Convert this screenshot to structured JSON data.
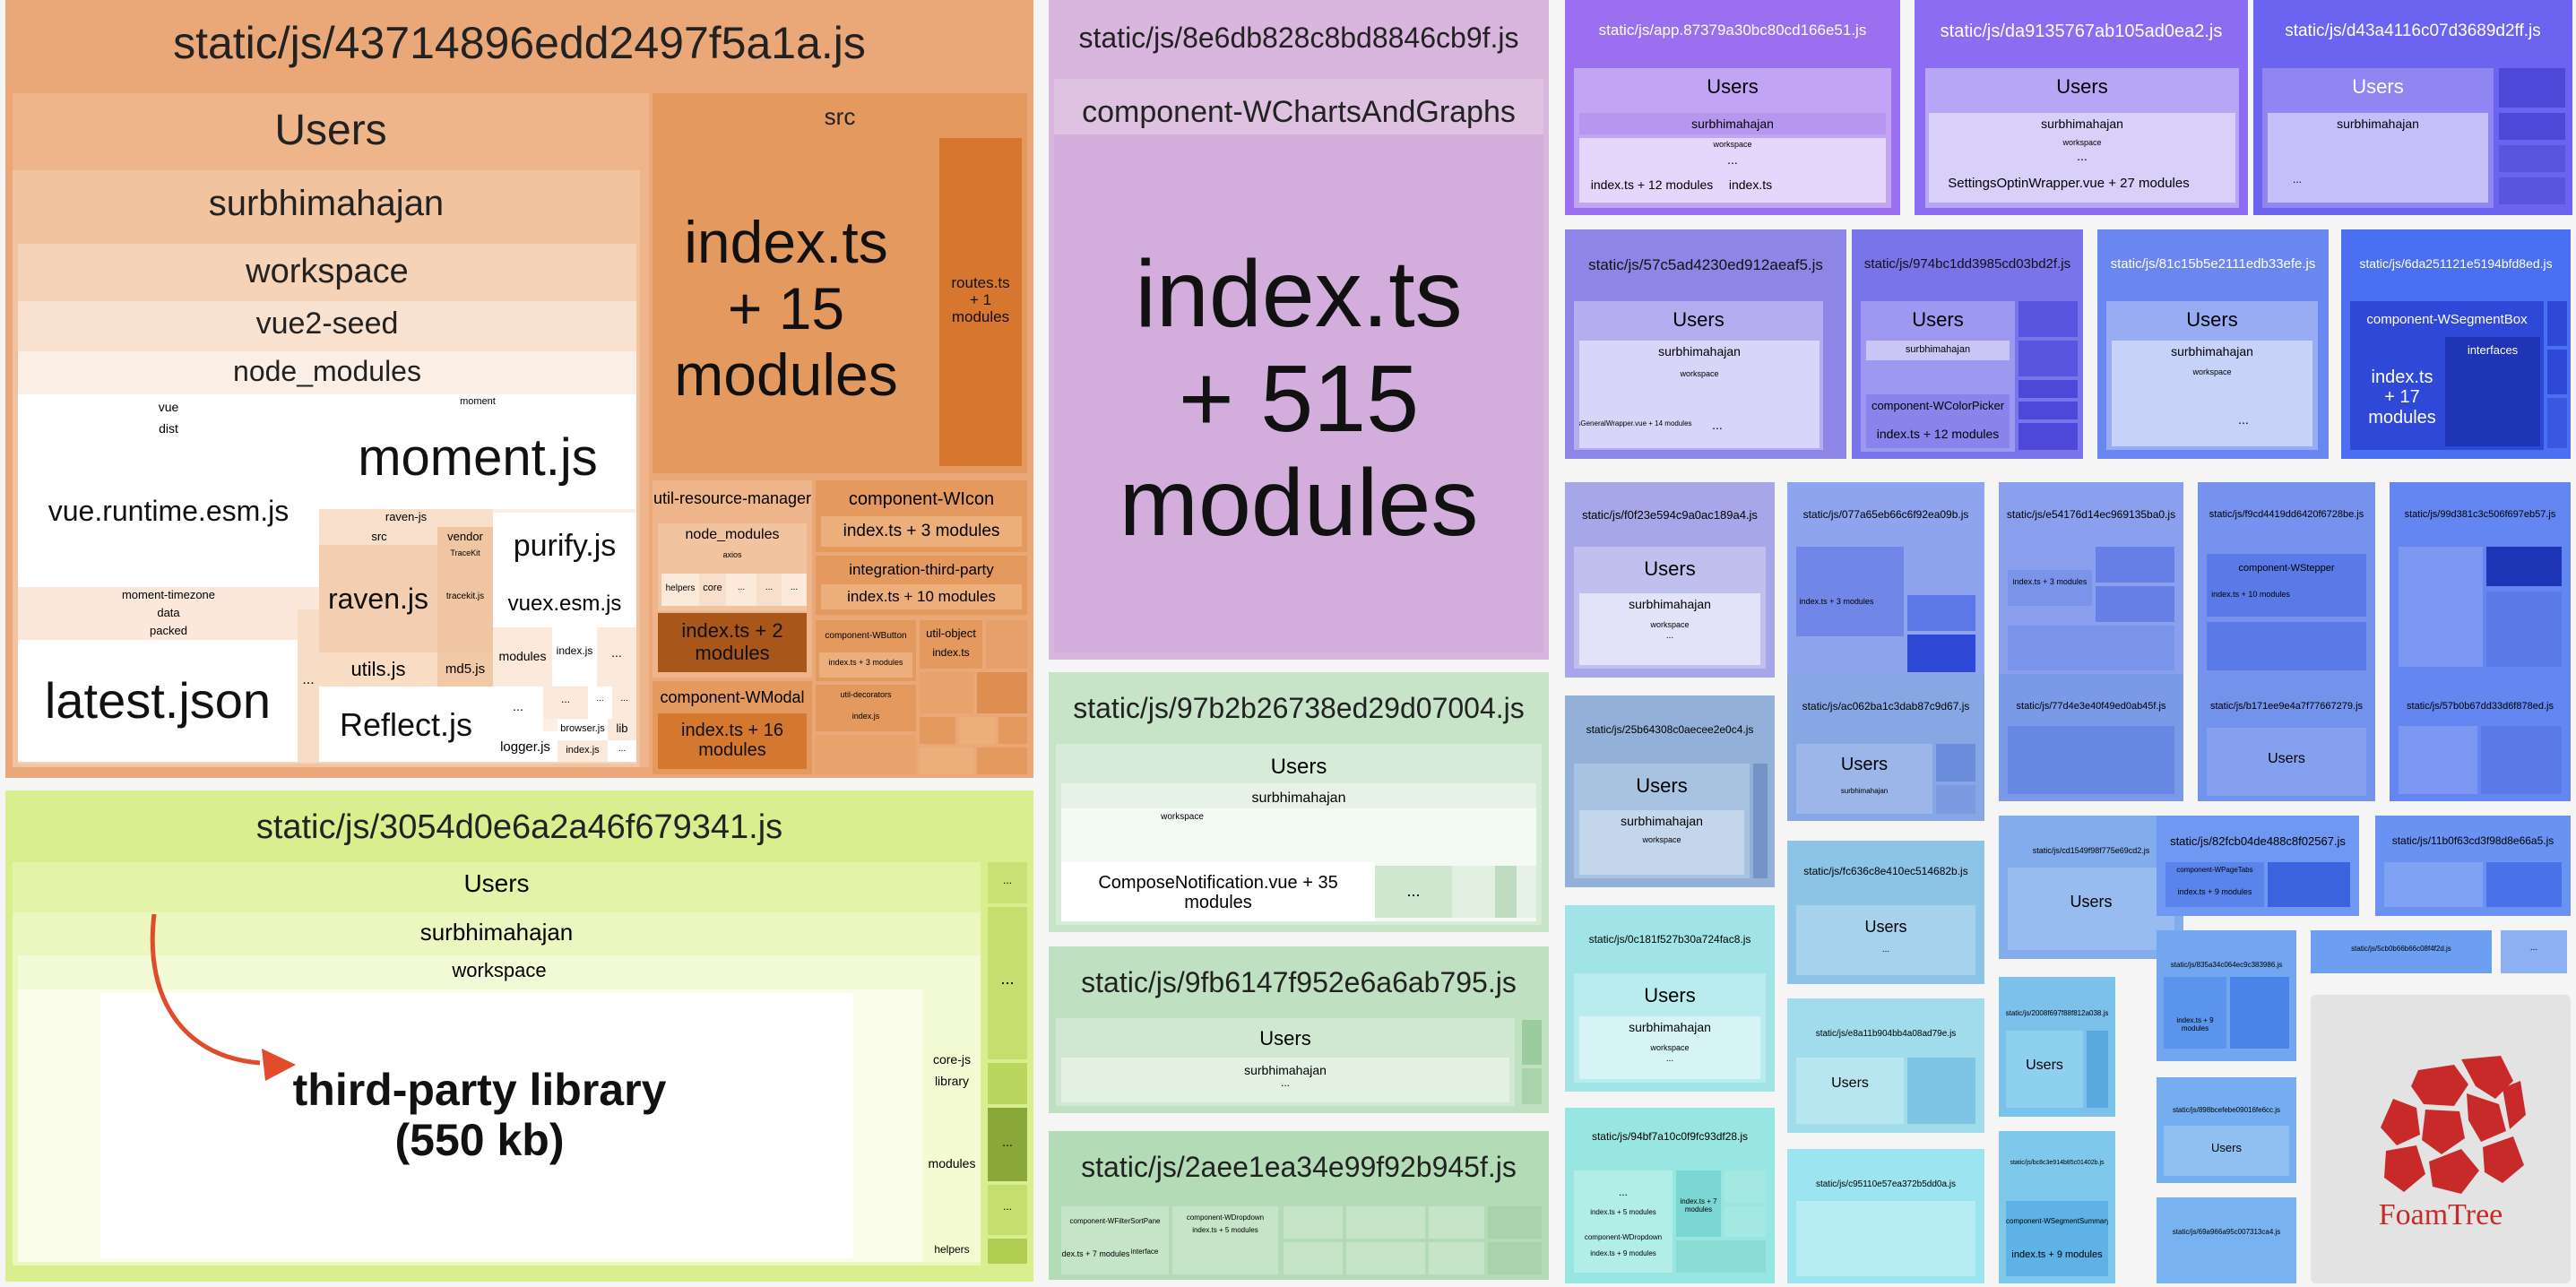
{
  "colors": {
    "orange": "#e9a46f",
    "lime": "#d8ee8c",
    "lavender": "#d8b5dc",
    "green": "#b7dbbb",
    "purple": "#8c62f0",
    "blue": "#5b82f0",
    "cyan": "#9fd8ee",
    "arrow": "#e14a2a"
  },
  "annotation": {
    "third_party_line1": "third-party library",
    "third_party_line2": "(550 kb)"
  },
  "bundles": {
    "b1": {
      "title": "static/js/43714896edd2497f5a1a.js",
      "users": "Users",
      "user": "surbhimahajan",
      "workspace": "workspace",
      "project": "vue2-seed",
      "node_modules": "node_modules",
      "vue": "vue",
      "dist": "dist",
      "vue_runtime": "vue.runtime.esm.js",
      "moment_small": "moment",
      "moment": "moment.js",
      "moment_timezone": "moment-timezone",
      "data": "data",
      "packed": "packed",
      "latest_json": "latest.json",
      "raven_js_dir": "raven-js",
      "src": "src",
      "raven": "raven.js",
      "vendor": "vendor",
      "tracekit_dir": "TraceKit",
      "tracekit": "tracekit.js",
      "utils": "utils.js",
      "md5": "md5.js",
      "reflect": "Reflect.js",
      "purify": "purify.js",
      "vuex": "vuex.esm.js",
      "modules": "modules",
      "index_js": "index.js",
      "browser_js": "browser.js",
      "lib": "lib",
      "logger": "logger.js",
      "ellipsis": "...",
      "src_folder": "src",
      "index_main_1": "index.ts",
      "index_main_2": "+ 15",
      "index_main_3": "modules",
      "routes_1": "routes.ts",
      "routes_2": "+ 1",
      "routes_3": "modules",
      "urm": "util-resource-manager",
      "urm_node_modules": "node_modules",
      "axios": "axios",
      "helpers": "helpers",
      "core": "core",
      "urm_index_1": "index.ts + 2",
      "urm_index_2": "modules",
      "wicon": "component-WIcon",
      "wicon_index": "index.ts + 3 modules",
      "itp": "integration-third-party",
      "itp_index": "index.ts + 10 modules",
      "wbutton": "component-WButton",
      "util_object": "util-object",
      "wbutton_index": "index.ts + 3 modules",
      "util_object_index": "index.ts",
      "util_decorators": "util-decorators",
      "wmodal": "component-WModal",
      "wmodal_index_1": "index.ts + 16",
      "wmodal_index_2": "modules"
    },
    "b2": {
      "title": "static/js/3054d0e6a2a46f679341.js",
      "users": "Users",
      "user": "surbhimahajan",
      "workspace": "workspace",
      "core_js": "core-js",
      "library": "library",
      "modules": "modules",
      "helpers": "helpers",
      "ellipsis": "..."
    },
    "b3": {
      "title": "static/js/8e6db828c8bd8846cb9f.js",
      "component": "component-WChartsAndGraphs",
      "index_1": "index.ts",
      "index_2": "+ 515",
      "index_3": "modules"
    },
    "b4": {
      "title": "static/js/97b2b26738ed29d07004.js",
      "users": "Users",
      "user": "surbhimahajan",
      "workspace": "workspace",
      "compose_1": "ComposeNotification.vue + 35",
      "compose_2": "modules",
      "ellipsis": "..."
    },
    "b5": {
      "title": "static/js/9fb6147f952e6a6ab795.js",
      "users": "Users",
      "user": "surbhimahajan",
      "ellipsis": "..."
    },
    "b6": {
      "title": "static/js/2aee1ea34e99f92b945f.js",
      "filter_sort": "component-WFilterSortPane",
      "interface": "interface",
      "dropdown": "component-WDropdown",
      "index_7": "index.ts + 7 modules",
      "index_5": "index.ts + 5 modules",
      "ellipsis": "..."
    },
    "small": {
      "app": "static/js/app.87379a30bc80cd166e51.js",
      "da91": "static/js/da9135767ab105ad0ea2.js",
      "d43a": "static/js/d43a4116c07d3689d2ff.js",
      "c57c": "static/js/57c5ad4230ed912aeaf5.js",
      "c974": "static/js/974bc1dd3985cd03bd2f.js",
      "c81c": "static/js/81c15b5e2111edb33efe.js",
      "c6da": "static/js/6da251121e5194bfd8ed.js",
      "f0f2": "static/js/f0f23e594c9a0ac189a4.js",
      "c077": "static/js/077a65eb66c6f92ea09b.js",
      "e541": "static/js/e54176d14ec969135ba0.js",
      "f9cd": "static/js/f9cd4419dd6420f6728be.js",
      "f99d": "static/js/99d381c3c506f697eb57.js",
      "c25b": "static/js/25b64308c0aecee2e0c4.js",
      "ac06": "static/js/ac062ba1c3dab87c9d67.js",
      "c77d": "static/js/77d4e3e40f49ed0ab45f.js",
      "b171": "static/js/b171ee9e4a7f77667279.js",
      "c57b": "static/js/57b0b67dd33d6f878ed.js",
      "fc63": "static/js/fc636c8e410ec514682b.js",
      "c0c1": "static/js/0c181f527b30a724fac8.js",
      "cd15": "static/js/cd1549f98f775e69cd2.js",
      "c82f": "static/js/82fcb04de488c8f02567.js",
      "c11b": "static/js/11b0f63cd3f98d8e66a5.js",
      "e8a1": "static/js/e8a11b904bb4a08ad79e.js",
      "c200": "static/js/2008f697f88f812a038.js",
      "c835": "static/js/835a34c064ec9c383986.js",
      "c94b": "static/js/94bf7a10c0f9fc93df28.js",
      "c951": "static/js/c95110e57ea372b5dd0a.js",
      "cbc8": "static/js/bc8c3e914b85c01402b.js",
      "c898": "static/js/898bcefebe09016fe6cc.js",
      "c69a": "static/js/69a966a95c007313ca4.js",
      "c5cb": "static/js/5cb0b66b66c08f4f2d.js",
      "users": "Users",
      "user": "surbhimahajan",
      "workspace": "workspace",
      "index12": "index.ts + 12 modules",
      "index": "index.ts",
      "settings_optin": "SettingsOptinWrapper.vue + 27 modules",
      "settings_general": "SettingsGeneralWrapper.vue + 14 modules",
      "color_picker": "component-WColorPicker",
      "segment_box": "component-WSegmentBox",
      "index17_1": "index.ts",
      "index17_2": "+ 17",
      "index17_3": "modules",
      "interfaces": "interfaces",
      "stepper": "component-WStepper",
      "index10": "index.ts + 10 modules",
      "index5": "index.ts + 5 modules",
      "index9": "index.ts + 9 modules",
      "index7": "index.ts + 7 modules",
      "index3": "index.ts + 3 modules",
      "segment_summary": "component-WSegmentSummary",
      "page_tabs": "component-WPageTabs",
      "dropdown": "component-WDropdown",
      "ellipsis": "..."
    },
    "foamtree": {
      "label": "FoamTree"
    }
  }
}
